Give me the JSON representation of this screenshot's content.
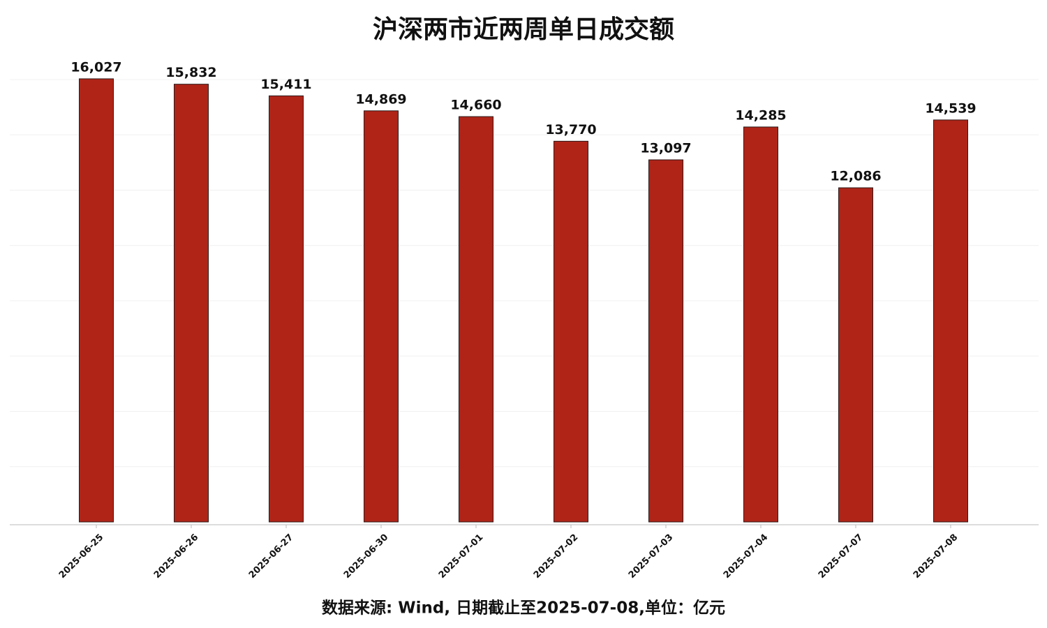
{
  "chart_data": {
    "type": "bar",
    "title": "沪深两市近两周单日成交额",
    "footnote": "数据来源: Wind, 日期截止至2025-07-08,单位：亿元",
    "categories": [
      "2025-06-25",
      "2025-06-26",
      "2025-06-27",
      "2025-06-30",
      "2025-07-01",
      "2025-07-02",
      "2025-07-03",
      "2025-07-04",
      "2025-07-07",
      "2025-07-08"
    ],
    "values": [
      16027,
      15832,
      15411,
      14869,
      14660,
      13770,
      13097,
      14285,
      12086,
      14539
    ],
    "value_labels": [
      "16,027",
      "15,832",
      "15,411",
      "14,869",
      "14,660",
      "13,770",
      "13,097",
      "14,285",
      "12,086",
      "14,539"
    ],
    "color": "#b02418",
    "ylim": [
      0,
      16000
    ],
    "yticks": [
      2000,
      4000,
      6000,
      8000,
      10000,
      12000,
      14000,
      16000
    ],
    "grid": true
  }
}
